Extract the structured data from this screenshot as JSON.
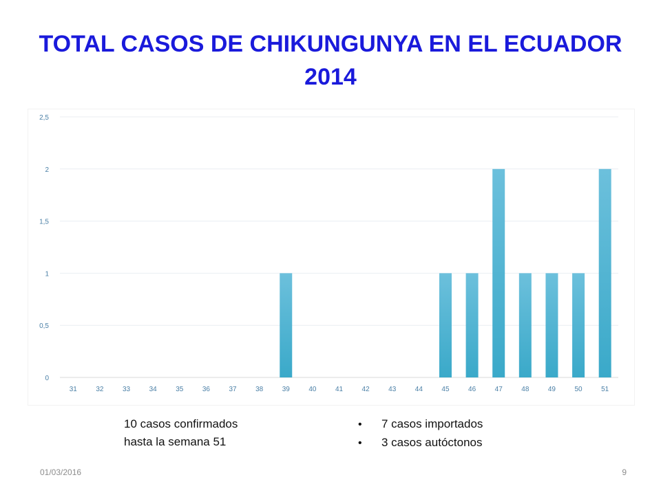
{
  "title": {
    "line1": "TOTAL CASOS DE CHIKUNGUNYA EN EL ECUADOR",
    "line2": "2014"
  },
  "chart_data": {
    "type": "bar",
    "categories": [
      "31",
      "32",
      "33",
      "34",
      "35",
      "36",
      "37",
      "38",
      "39",
      "40",
      "41",
      "42",
      "43",
      "44",
      "45",
      "46",
      "47",
      "48",
      "49",
      "50",
      "51"
    ],
    "values": [
      0,
      0,
      0,
      0,
      0,
      0,
      0,
      0,
      1,
      0,
      0,
      0,
      0,
      0,
      1,
      1,
      2,
      1,
      1,
      1,
      2
    ],
    "ylim": [
      0,
      2.5
    ],
    "yticks": [
      "0",
      "0,5",
      "1",
      "1,5",
      "2",
      "2,5"
    ],
    "grid": true,
    "bar_color": "#3aa9c9"
  },
  "notes": {
    "summary_line1": "10 casos confirmados",
    "summary_line2": "hasta la semana 51",
    "bullets": [
      "7 casos importados",
      "3 casos autóctonos"
    ]
  },
  "footer": {
    "date": "01/03/2016",
    "page": "9"
  }
}
